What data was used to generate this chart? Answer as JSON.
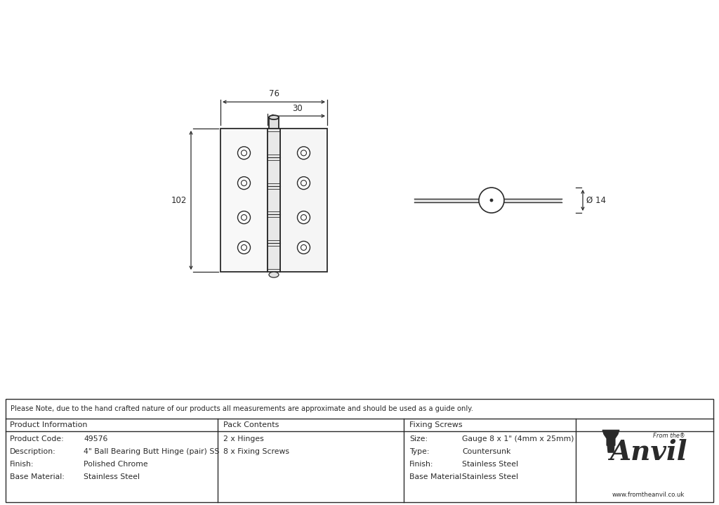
{
  "bg_color": "#ffffff",
  "line_color": "#2a2a2a",
  "note_text": "Please Note, due to the hand crafted nature of our products all measurements are approximate and should be used as a guide only.",
  "product_info": {
    "header": "Product Information",
    "rows": [
      [
        "Product Code:",
        "49576"
      ],
      [
        "Description:",
        "4\" Ball Bearing Butt Hinge (pair) SS"
      ],
      [
        "Finish:",
        "Polished Chrome"
      ],
      [
        "Base Material:",
        "Stainless Steel"
      ]
    ]
  },
  "pack_contents": {
    "header": "Pack Contents",
    "rows": [
      [
        "2 x Hinges"
      ],
      [
        "8 x Fixing Screws"
      ]
    ]
  },
  "fixing_screws": {
    "header": "Fixing Screws",
    "rows": [
      [
        "Size:",
        "Gauge 8 x 1\" (4mm x 25mm)"
      ],
      [
        "Type:",
        "Countersunk"
      ],
      [
        "Finish:",
        "Stainless Steel"
      ],
      [
        "Base Material:",
        "Stainless Steel"
      ]
    ]
  },
  "dim_76": "76",
  "dim_30": "30",
  "dim_102": "102",
  "dim_14": "Ø 14"
}
